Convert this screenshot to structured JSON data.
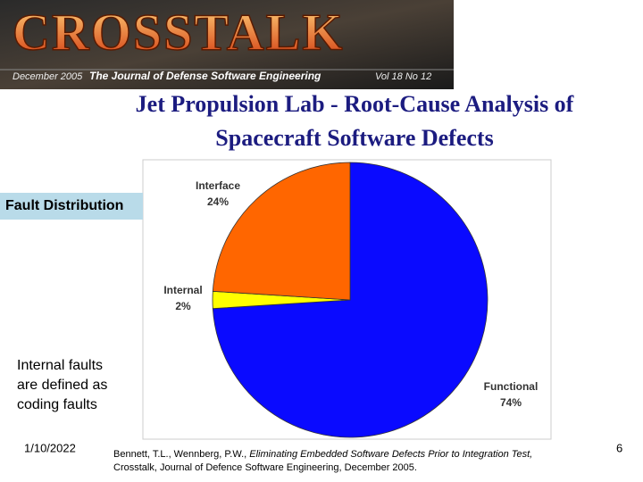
{
  "banner": {
    "logo": "CROSSTALK",
    "issue": "December 2005",
    "tagline": "The Journal of Defense Software Engineering",
    "volume": "Vol 18 No 12"
  },
  "title_lines": [
    "Jet Propulsion Lab - Root-Cause Analysis of",
    "Spacecraft Software Defects"
  ],
  "section_label": "Fault Distribution",
  "note_lines": [
    "Internal faults",
    "are defined as",
    "coding faults"
  ],
  "date": "1/10/2022",
  "citation": {
    "authors": "Bennett, T.L., Wennberg, P.W., ",
    "title": "Eliminating Embedded Software Defects Prior to Integration Test,",
    "source": "Crosstalk, Journal of Defence Software Engineering, December 2005."
  },
  "page_number": "6",
  "chart_data": {
    "type": "pie",
    "categories": [
      "Functional",
      "Internal",
      "Interface"
    ],
    "values": [
      74,
      2,
      24
    ],
    "value_labels": [
      "74%",
      "2%",
      "24%"
    ],
    "colors": [
      "#0a0aff",
      "#ffff00",
      "#ff6600"
    ]
  }
}
